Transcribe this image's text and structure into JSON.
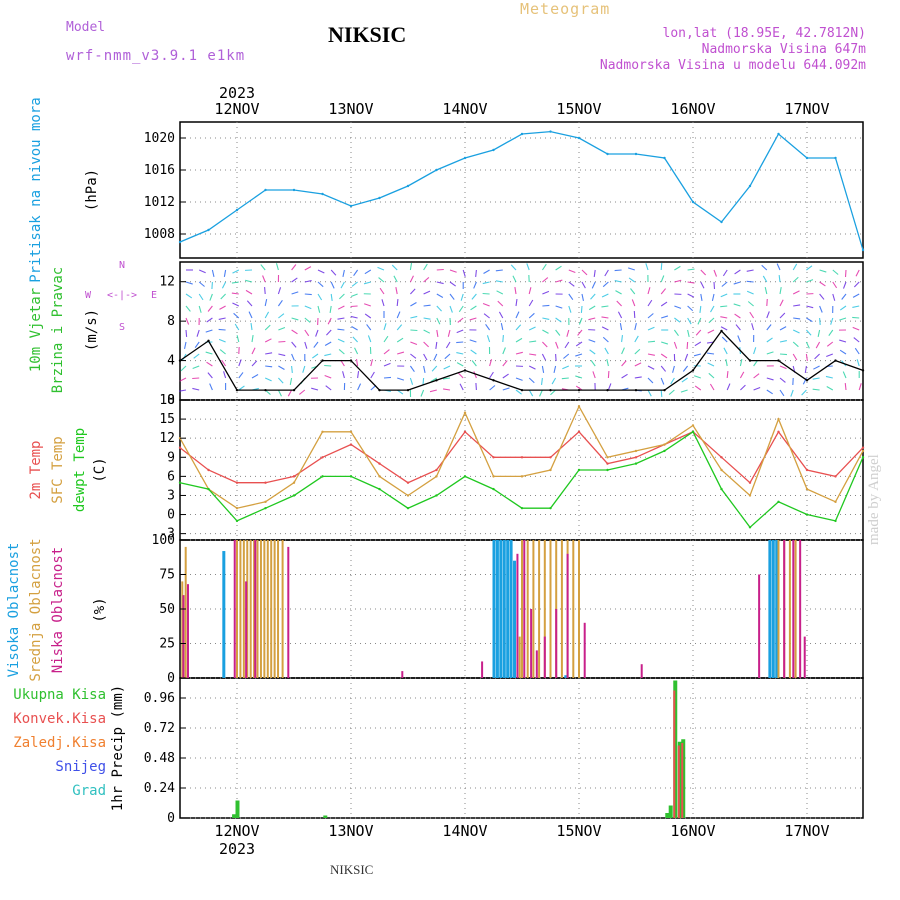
{
  "header": {
    "meteogram": "Meteogram",
    "model_label": "Model",
    "model_name": "wrf-nmm_v3.9.1 e1km",
    "station": "NIKSIC",
    "lonlat": "lon,lat (18.95E, 42.7812N)",
    "elev": "Nadmorska Visina 647m",
    "elev_model": "Nadmorska Visina u modelu 644.092m",
    "year": "2023",
    "credit": "made by Angel",
    "bottom_station": "NIKSIC"
  },
  "colors": {
    "pressure": "#1aa0e0",
    "t2m": "#e85050",
    "sfc": "#d4a040",
    "dewpt": "#20c820",
    "high": "#1aa0e0",
    "mid": "#d4a040",
    "low": "#c8208a",
    "total_precip": "#30c030",
    "conv_precip": "#e85050",
    "freeze": "#f08030",
    "snow": "#4050e8",
    "graupel": "#30c0c0",
    "grid": "#888888"
  },
  "panel_labels": {
    "pressure": [
      "Pritisak na nivou mora",
      "(hPa)"
    ],
    "wind": [
      "10m Vjetar",
      "Brzina i Pravac",
      "(m/s)"
    ],
    "wind_dirs": {
      "n": "N",
      "s": "S",
      "w": "W",
      "e": "E",
      "arrows": "<-|->"
    },
    "temp": [
      "2m Temp",
      "SFC Temp",
      "dewpt Temp",
      "(C)"
    ],
    "cloud": [
      "Visoka Oblacnost",
      "Srednja Oblacnost",
      "Niska Oblacnost",
      "(%)"
    ],
    "precip_ylabel": "1hr Precip (mm)",
    "precip_legend": [
      "Ukupna Kisa",
      "Konvek.Kisa",
      "Zaledj.Kisa",
      "Snijeg",
      "Grad"
    ]
  },
  "chart_data": [
    {
      "type": "line",
      "title": "Pritisak na nivou mora",
      "ylabel": "(hPa)",
      "ylim": [
        1005,
        1022
      ],
      "yticks": [
        1008,
        1012,
        1016,
        1020
      ],
      "x_days": [
        "12NOV",
        "13NOV",
        "14NOV",
        "15NOV",
        "16NOV",
        "17NOV"
      ],
      "x": [
        0,
        0.25,
        0.5,
        0.75,
        1,
        1.25,
        1.5,
        1.75,
        2,
        2.25,
        2.5,
        2.75,
        3,
        3.25,
        3.5,
        3.75,
        4,
        4.25,
        4.5,
        4.75,
        5,
        5.25,
        5.5,
        5.75,
        6
      ],
      "series": [
        {
          "values": [
            1007,
            1008.5,
            1011,
            1013.5,
            1013.5,
            1013,
            1011.5,
            1012.5,
            1014,
            1016,
            1017.5,
            1018.5,
            1020.5,
            1020.8,
            1020,
            1018,
            1018,
            1017.5,
            1012,
            1009.5,
            1014,
            1020.5,
            1017.5,
            1017.5,
            1006
          ]
        }
      ],
      "grid": true
    },
    {
      "type": "line",
      "title": "10m Vjetar Brzina i Pravac",
      "ylabel": "(m/s)",
      "ylim": [
        0,
        14
      ],
      "yticks": [
        0,
        4,
        8,
        12
      ],
      "x": [
        0,
        0.25,
        0.5,
        0.75,
        1,
        1.25,
        1.5,
        1.75,
        2,
        2.25,
        2.5,
        2.75,
        3,
        3.25,
        3.5,
        3.75,
        4,
        4.25,
        4.5,
        4.75,
        5,
        5.25,
        5.5,
        5.75,
        6
      ],
      "series": [
        {
          "values": [
            4,
            6,
            1,
            1,
            1,
            4,
            4,
            1,
            1,
            2,
            3,
            2,
            1,
            1,
            1,
            1,
            1,
            1,
            3,
            7,
            4,
            4,
            2,
            4,
            3
          ]
        }
      ],
      "grid": true
    },
    {
      "type": "line",
      "title": "2m Temp / SFC Temp / dewpt Temp",
      "ylabel": "(C)",
      "ylim": [
        -4,
        18
      ],
      "yticks": [
        -3,
        0,
        3,
        6,
        9,
        12,
        15,
        18
      ],
      "x": [
        0,
        0.25,
        0.5,
        0.75,
        1,
        1.25,
        1.5,
        1.75,
        2,
        2.25,
        2.5,
        2.75,
        3,
        3.25,
        3.5,
        3.75,
        4,
        4.25,
        4.5,
        4.75,
        5,
        5.25,
        5.5,
        5.75,
        6
      ],
      "series": [
        {
          "name": "2m Temp",
          "values": [
            10.5,
            7,
            5,
            5,
            6,
            9,
            11,
            8,
            5,
            7,
            13,
            9,
            9,
            9,
            13,
            8,
            9,
            11,
            13,
            9,
            5,
            13,
            7,
            6,
            10.5
          ]
        },
        {
          "name": "SFC Temp",
          "values": [
            12,
            4,
            1,
            2,
            5,
            13,
            13,
            6,
            3,
            6,
            16,
            6,
            6,
            7,
            17,
            9,
            10,
            11,
            14,
            7,
            3,
            15,
            4,
            2,
            10
          ]
        },
        {
          "name": "dewpt Temp",
          "values": [
            5,
            4,
            -1,
            1,
            3,
            6,
            6,
            4,
            1,
            3,
            6,
            4,
            1,
            1,
            7,
            7,
            8,
            10,
            13,
            4,
            -2,
            2,
            0,
            -1,
            9
          ]
        }
      ],
      "grid": true
    },
    {
      "type": "bar",
      "title": "Oblacnost",
      "ylabel": "(%)",
      "ylim": [
        0,
        100
      ],
      "yticks": [
        0,
        25,
        50,
        75,
        100
      ],
      "x_days": [
        "12NOV",
        "13NOV",
        "14NOV",
        "15NOV",
        "16NOV",
        "17NOV"
      ],
      "series": [
        {
          "name": "Visoka Oblacnost",
          "bars": [
            [
              0.38,
              92
            ],
            [
              2.75,
              100
            ],
            [
              2.78,
              100
            ],
            [
              2.81,
              100
            ],
            [
              2.84,
              100
            ],
            [
              2.87,
              100
            ],
            [
              2.9,
              100
            ],
            [
              2.93,
              85
            ],
            [
              3.38,
              2
            ],
            [
              5.17,
              100
            ],
            [
              5.2,
              100
            ],
            [
              5.23,
              100
            ]
          ]
        },
        {
          "name": "Srednja Oblacnost",
          "bars": [
            [
              0.05,
              95
            ],
            [
              0.02,
              70
            ],
            [
              0.5,
              100
            ],
            [
              0.53,
              100
            ],
            [
              0.56,
              100
            ],
            [
              0.59,
              100
            ],
            [
              0.62,
              100
            ],
            [
              0.65,
              100
            ],
            [
              0.68,
              100
            ],
            [
              0.71,
              100
            ],
            [
              0.74,
              100
            ],
            [
              0.77,
              100
            ],
            [
              0.8,
              100
            ],
            [
              0.83,
              100
            ],
            [
              0.86,
              100
            ],
            [
              0.9,
              100
            ],
            [
              0.03,
              60
            ],
            [
              3.0,
              100
            ],
            [
              3.05,
              100
            ],
            [
              3.1,
              100
            ],
            [
              3.15,
              100
            ],
            [
              3.2,
              100
            ],
            [
              3.25,
              100
            ],
            [
              3.3,
              100
            ],
            [
              3.35,
              100
            ],
            [
              3.4,
              100
            ],
            [
              3.45,
              100
            ],
            [
              3.5,
              100
            ],
            [
              2.98,
              30
            ],
            [
              5.25,
              100
            ],
            [
              5.3,
              100
            ],
            [
              5.35,
              100
            ],
            [
              5.4,
              100
            ]
          ]
        },
        {
          "name": "Niska Oblacnost",
          "bars": [
            [
              0.03,
              60
            ],
            [
              0.07,
              68
            ],
            [
              0.48,
              100
            ],
            [
              0.58,
              70
            ],
            [
              0.66,
              100
            ],
            [
              0.95,
              95
            ],
            [
              1.95,
              5
            ],
            [
              2.65,
              12
            ],
            [
              2.96,
              90
            ],
            [
              3.02,
              100
            ],
            [
              3.08,
              50
            ],
            [
              3.13,
              20
            ],
            [
              3.2,
              30
            ],
            [
              3.3,
              50
            ],
            [
              3.4,
              90
            ],
            [
              3.55,
              40
            ],
            [
              4.05,
              10
            ],
            [
              5.08,
              75
            ],
            [
              5.3,
              100
            ],
            [
              5.38,
              100
            ],
            [
              5.44,
              100
            ],
            [
              5.48,
              30
            ]
          ]
        }
      ],
      "grid": true
    },
    {
      "type": "bar",
      "title": "1hr Precip",
      "ylabel": "1hr Precip (mm)",
      "ylim": [
        0,
        1.12
      ],
      "yticks": [
        0,
        0.24,
        0.48,
        0.72,
        0.96
      ],
      "x_days": [
        "12NOV",
        "13NOV",
        "14NOV",
        "15NOV",
        "16NOV",
        "17NOV"
      ],
      "series": [
        {
          "name": "Ukupna Kisa",
          "bars": [
            [
              -0.45,
              0.03
            ],
            [
              -0.42,
              0.14
            ],
            [
              0.35,
              0.02
            ],
            [
              3.35,
              0.04
            ],
            [
              3.38,
              0.1
            ],
            [
              3.42,
              1.1
            ],
            [
              3.46,
              0.61
            ],
            [
              3.49,
              0.63
            ],
            [
              5.3,
              0.06
            ],
            [
              5.33,
              0.44
            ],
            [
              5.36,
              0.29
            ],
            [
              5.4,
              1.04
            ],
            [
              5.43,
              0.95
            ],
            [
              5.46,
              0.99
            ],
            [
              5.5,
              0.88
            ]
          ]
        },
        {
          "name": "Konvek.Kisa",
          "bars": [
            [
              3.42,
              1.02
            ],
            [
              3.46,
              0.58
            ],
            [
              3.49,
              0.6
            ],
            [
              5.4,
              0.9
            ],
            [
              5.46,
              0.95
            ],
            [
              5.5,
              0.82
            ]
          ]
        }
      ],
      "grid": true
    }
  ]
}
